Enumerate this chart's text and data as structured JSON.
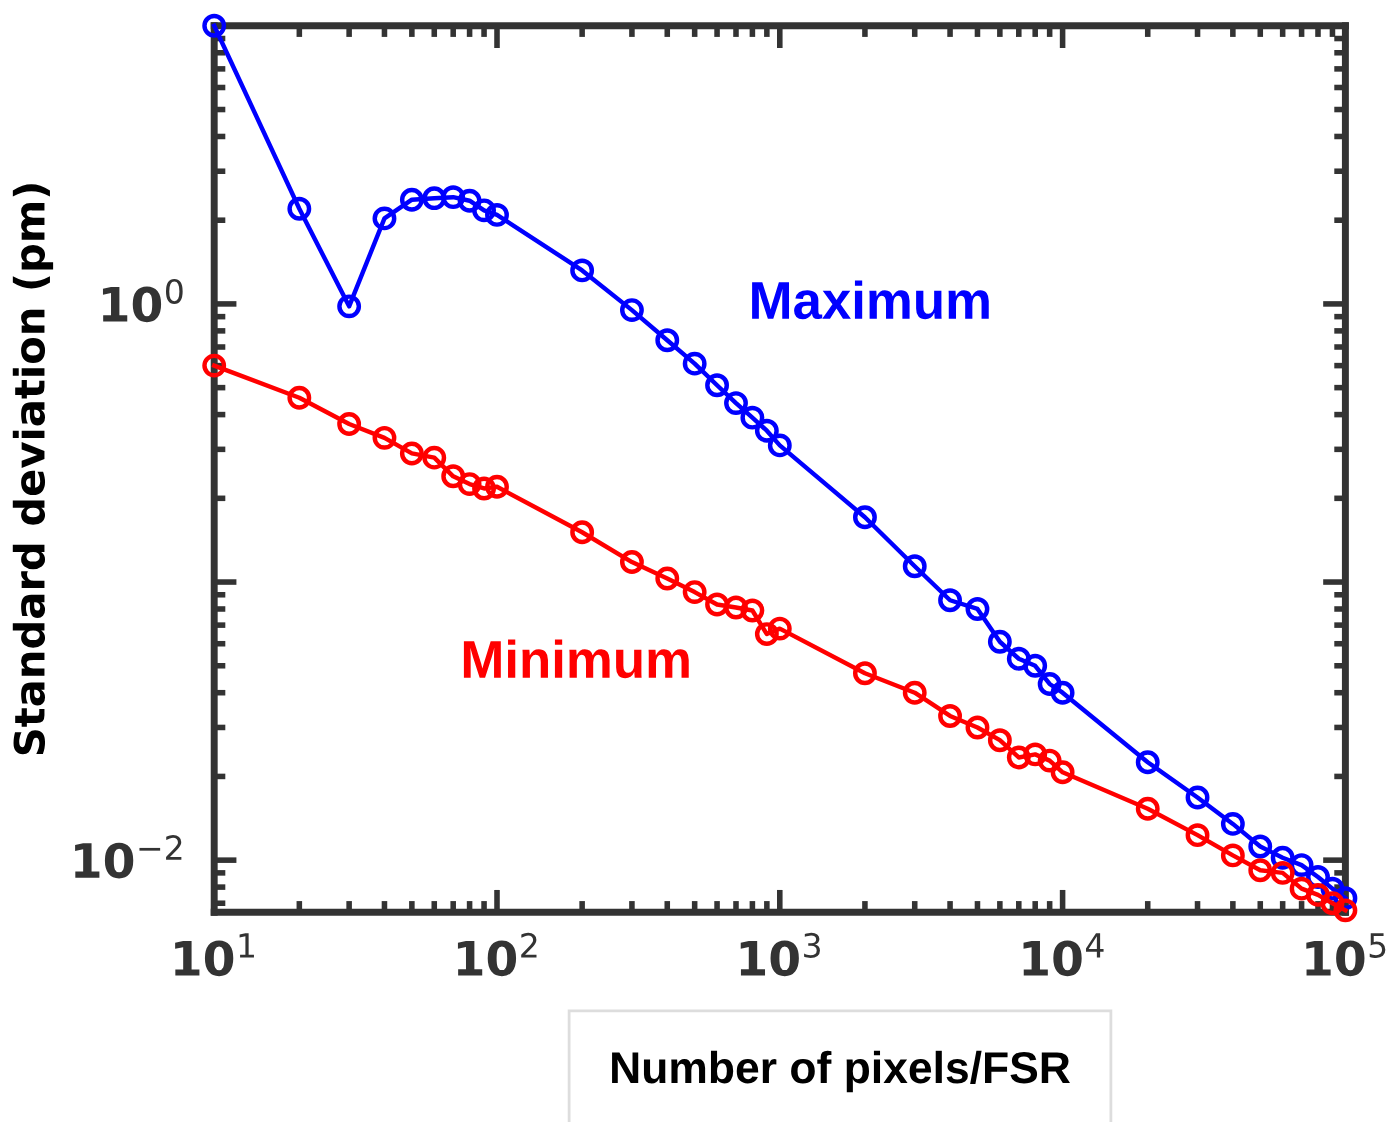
{
  "chart_data": {
    "type": "line",
    "xlabel": "Number of pixels/FSR",
    "ylabel": "Standard deviation (pm)",
    "log": "xy",
    "marker": "circle",
    "line_style": "solid",
    "grid": false,
    "legend": false,
    "x": [
      10,
      20,
      30,
      40,
      50,
      60,
      70,
      80,
      90,
      100,
      200,
      300,
      400,
      500,
      600,
      700,
      800,
      900,
      1000,
      2000,
      3000,
      4000,
      5000,
      6000,
      7000,
      8000,
      9000,
      10000,
      20000,
      30000,
      40000,
      50000,
      60000,
      70000,
      80000,
      90000,
      100000
    ],
    "series": [
      {
        "name": "Maximum",
        "color": "#0000ff",
        "values": [
          10,
          2.2,
          0.98,
          2.03,
          2.37,
          2.4,
          2.42,
          2.35,
          2.17,
          2.09,
          1.32,
          0.95,
          0.74,
          0.61,
          0.51,
          0.44,
          0.39,
          0.35,
          0.31,
          0.171,
          0.114,
          0.086,
          0.08,
          0.061,
          0.053,
          0.05,
          0.043,
          0.04,
          0.0225,
          0.0168,
          0.0135,
          0.0112,
          0.0102,
          0.0096,
          0.0087,
          0.0079,
          0.0073
        ]
      },
      {
        "name": "Minimum",
        "color": "#ff0000",
        "values": [
          0.6,
          0.46,
          0.37,
          0.33,
          0.29,
          0.28,
          0.24,
          0.225,
          0.217,
          0.22,
          0.151,
          0.118,
          0.103,
          0.092,
          0.083,
          0.081,
          0.079,
          0.065,
          0.068,
          0.047,
          0.04,
          0.033,
          0.03,
          0.027,
          0.0234,
          0.024,
          0.0228,
          0.0207,
          0.0153,
          0.0123,
          0.0104,
          0.0092,
          0.009,
          0.0079,
          0.0075,
          0.007,
          0.0066
        ]
      }
    ],
    "xlim": [
      10,
      100000
    ],
    "ylim": [
      0.0065,
      10
    ],
    "xticks": [
      {
        "value": 10,
        "label": "10$^{1}$"
      },
      {
        "value": 100,
        "label": "10$^{2}$"
      },
      {
        "value": 1000,
        "label": "10$^{3}$"
      },
      {
        "value": 10000,
        "label": "10$^{4}$"
      },
      {
        "value": 100000,
        "label": "10$^{5}$"
      }
    ],
    "yticks": [
      {
        "value": 0.01,
        "label": "10$^{−2}$"
      },
      {
        "value": 0.1,
        "label": null
      },
      {
        "value": 1,
        "label": "10$^{0}$"
      },
      {
        "value": 10,
        "label": null
      }
    ]
  }
}
